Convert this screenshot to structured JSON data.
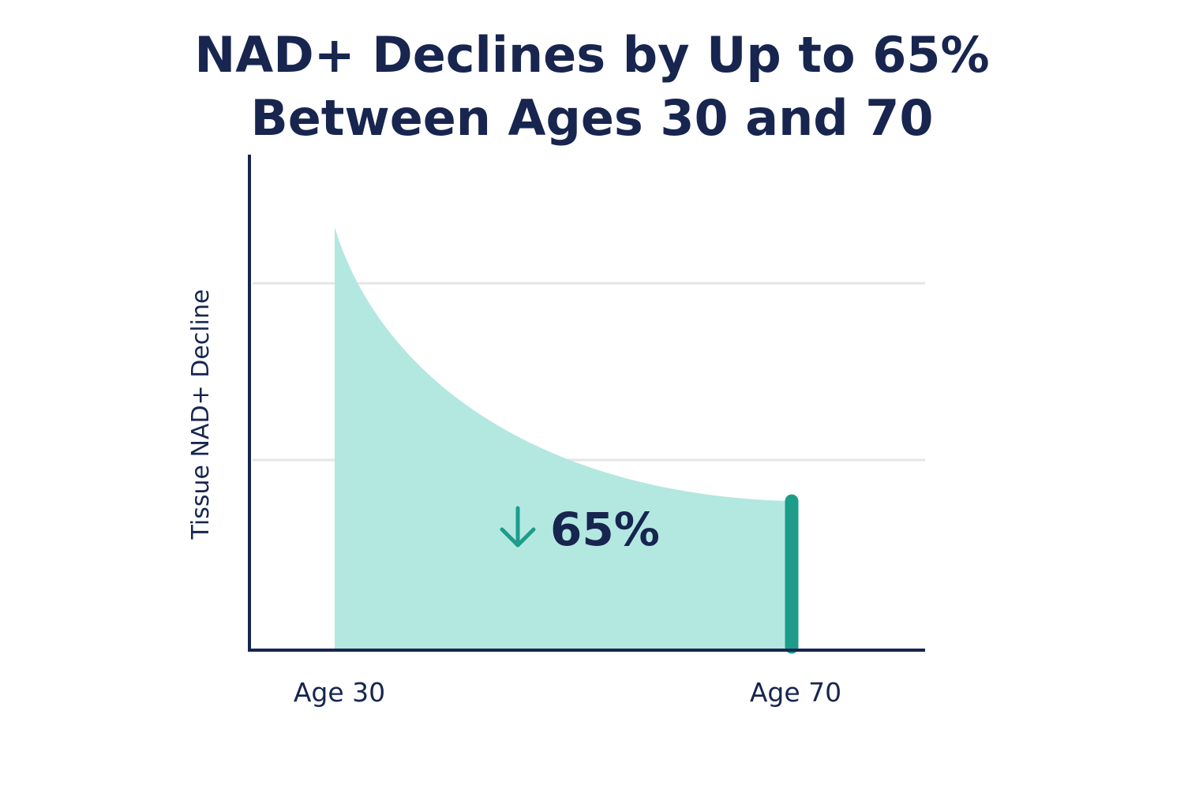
{
  "chart_data": {
    "type": "area",
    "title_lines": [
      "NAD+ Declines by Up to 65%",
      "Between Ages 30 and 70"
    ],
    "ylabel": "Tissue NAD+ Decline",
    "xlabel": "",
    "categories": [
      "Age 30",
      "Age 70"
    ],
    "x": [
      30,
      70
    ],
    "values": [
      100,
      35
    ],
    "annotation": "65%",
    "annotation_icon": "arrow-down-icon",
    "grid": "horizontal",
    "legend": "none"
  },
  "colors": {
    "title": "#17254f",
    "axis": "#17254f",
    "fill": "#b3e8e1",
    "bar_top": "#62e0d2",
    "bar_bottom": "#1b9e8d",
    "marker": "#1e9c8a",
    "arrow": "#1e9c8a",
    "grid": "#e6e6e6"
  }
}
